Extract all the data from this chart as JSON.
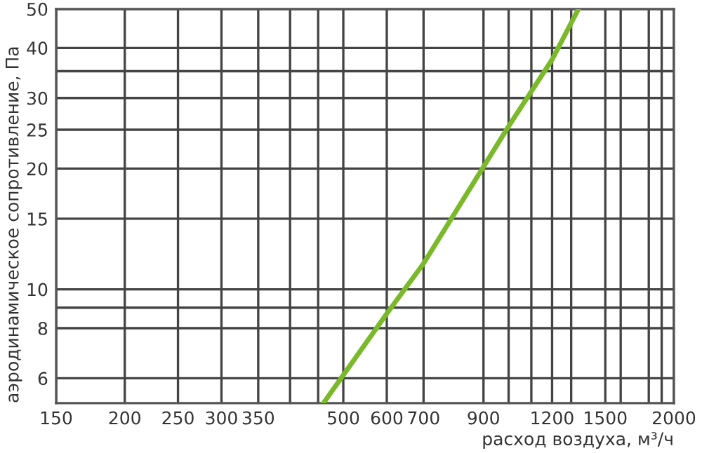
{
  "chart_data": {
    "type": "line",
    "xlabel": "расход воздуха, м³/ч",
    "ylabel": "аэродинамическое сопротивление, Па",
    "log": "xy",
    "grid": true,
    "legend": false,
    "marker": "none",
    "line_style": "solid",
    "xlim": [
      150,
      2000
    ],
    "ylim": [
      5.2,
      50
    ],
    "xticks": [
      150,
      200,
      250,
      300,
      350,
      {
        "value": 400,
        "label": null
      },
      {
        "value": 450,
        "label": null
      },
      500,
      600,
      700,
      900,
      {
        "value": 1000,
        "label": null
      },
      {
        "value": 1100,
        "label": null
      },
      1200,
      {
        "value": 1300,
        "label": null
      },
      1500,
      {
        "value": 1600,
        "label": null
      },
      {
        "value": 1800,
        "label": null
      },
      {
        "value": 1900,
        "label": null
      },
      2000
    ],
    "yticks": [
      6,
      8,
      {
        "value": 9,
        "label": null
      },
      10,
      15,
      20,
      25,
      30,
      {
        "value": 35,
        "label": null
      },
      40,
      50
    ],
    "series": [
      {
        "color": "#7ab929",
        "x": [
          460,
          600,
          700,
          1000,
          1200,
          1340
        ],
        "values": [
          5.2,
          8.7,
          11.6,
          25.5,
          37.4,
          50
        ]
      }
    ]
  }
}
